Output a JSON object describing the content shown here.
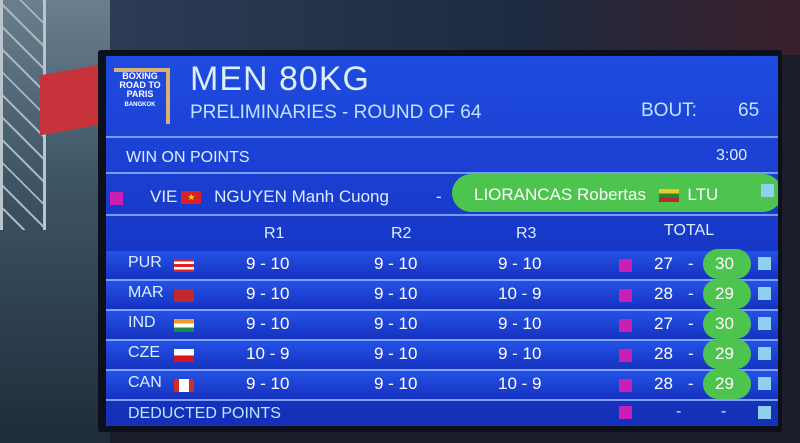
{
  "header": {
    "logo_text": "BOXING ROAD TO PARIS BANGKOK",
    "title": "MEN  80KG",
    "subtitle": "PRELIMINARIES - ROUND OF 64",
    "bout_label": "BOUT:",
    "bout_number": "65"
  },
  "result": {
    "label": "WIN ON POINTS",
    "time": "3:00"
  },
  "fighters": {
    "red": {
      "country": "VIE",
      "name": "NGUYEN Manh Cuong",
      "corner_color": "#c91fb4"
    },
    "separator": "-",
    "blue": {
      "country": "LTU",
      "name": "LIORANCAS Robertas",
      "corner_color": "#8fd0ee",
      "winner": true
    }
  },
  "columns": [
    "R1",
    "R2",
    "R3",
    "TOTAL"
  ],
  "judges": [
    {
      "country": "PUR",
      "r1": "9 - 10",
      "r2": "9 - 10",
      "r3": "9 - 10",
      "red_total": "27",
      "blue_total": "30"
    },
    {
      "country": "MAR",
      "r1": "9 - 10",
      "r2": "9 - 10",
      "r3": "10 - 9",
      "red_total": "28",
      "blue_total": "29"
    },
    {
      "country": "IND",
      "r1": "9 - 10",
      "r2": "9 - 10",
      "r3": "9 - 10",
      "red_total": "27",
      "blue_total": "30"
    },
    {
      "country": "CZE",
      "r1": "10 - 9",
      "r2": "9 - 10",
      "r3": "9 - 10",
      "red_total": "28",
      "blue_total": "29"
    },
    {
      "country": "CAN",
      "r1": "9 - 10",
      "r2": "9 - 10",
      "r3": "10 - 9",
      "red_total": "28",
      "blue_total": "29"
    }
  ],
  "deducted": {
    "label": "DEDUCTED POINTS",
    "red": "-",
    "blue": "-"
  },
  "colors": {
    "panel": "#1f4be0",
    "winner_highlight": "#4dc44d",
    "text": "#dcefff"
  }
}
